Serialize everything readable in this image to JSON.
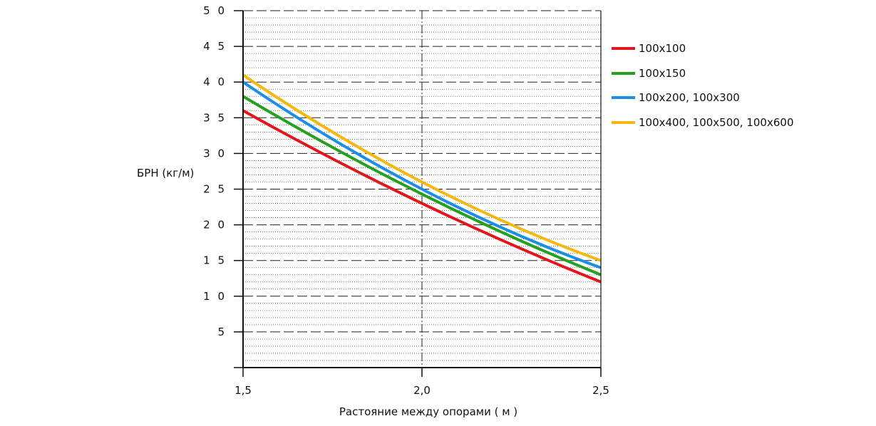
{
  "chart_data": {
    "type": "line",
    "xlabel": "Растояние между опорами  ( м )",
    "ylabel": "БРН (кг/м)",
    "xlim": [
      1.5,
      2.5
    ],
    "ylim": [
      0,
      50
    ],
    "x_ticks": [
      1.5,
      2.0,
      2.5
    ],
    "x_tick_labels": [
      "1,5",
      "2,0",
      "2,5"
    ],
    "y_ticks": [
      5,
      10,
      15,
      20,
      25,
      30,
      35,
      40,
      45,
      50
    ],
    "y_tick_labels": [
      "5",
      "1 0",
      "1 5",
      "2 0",
      "2 5",
      "3 0",
      "3 5",
      "4 0",
      "4 5",
      "5 0"
    ],
    "grid": {
      "major_horizontal": "dashed",
      "minor_horizontal": "dotted",
      "vertical": "dash-dot"
    },
    "legend_position": "right",
    "x": [
      1.5,
      2.0,
      2.5
    ],
    "series": [
      {
        "name": "100x100",
        "color": "#e3161b",
        "values": [
          36,
          23,
          12
        ]
      },
      {
        "name": "100x150",
        "color": "#26a020",
        "values": [
          38,
          24.3,
          13
        ]
      },
      {
        "name": "100x200, 100x300",
        "color": "#1c8ee6",
        "values": [
          40,
          25,
          14
        ]
      },
      {
        "name": "100x400, 100x500, 100x600",
        "color": "#f5b80f",
        "values": [
          41,
          26,
          15
        ]
      }
    ]
  }
}
